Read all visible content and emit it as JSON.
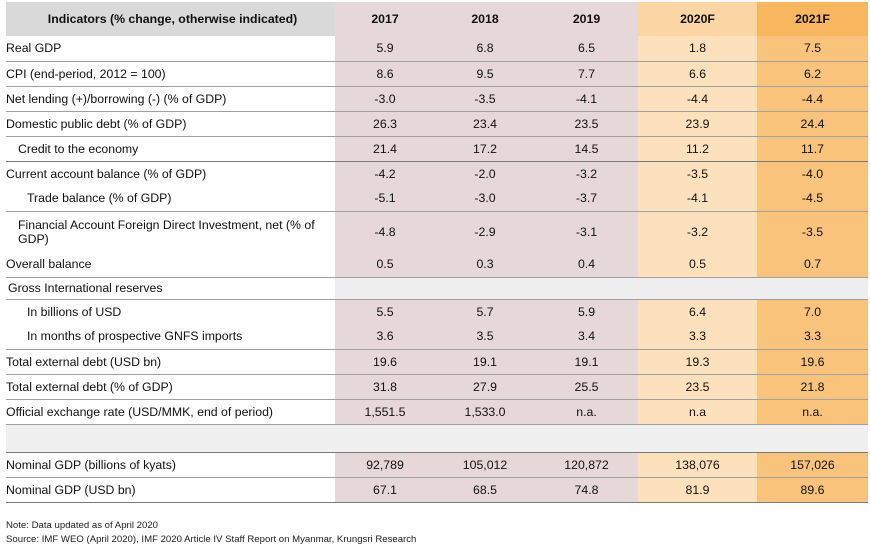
{
  "table": {
    "header": {
      "indicator": "Indicators (% change, otherwise indicated)",
      "years": [
        "2017",
        "2018",
        "2019",
        "2020F",
        "2021F"
      ]
    },
    "rows": [
      {
        "label": "Real GDP",
        "values": [
          "5.9",
          "6.8",
          "6.5",
          "1.8",
          "7.5"
        ]
      },
      {
        "label": "CPI (end-period, 2012 = 100)",
        "values": [
          "8.6",
          "9.5",
          "7.7",
          "6.6",
          "6.2"
        ]
      },
      {
        "label": "Net lending (+)/borrowing (-) (% of GDP)",
        "values": [
          "-3.0",
          "-3.5",
          "-4.1",
          "-4.4",
          "-4.4"
        ]
      },
      {
        "label": "Domestic public debt (% of GDP)",
        "values": [
          "26.3",
          "23.4",
          "23.5",
          "23.9",
          "24.4"
        ]
      },
      {
        "label": "Credit to the economy",
        "values": [
          "21.4",
          "17.2",
          "14.5",
          "11.2",
          "11.7"
        ]
      },
      {
        "label": "Current account balance (% of GDP)",
        "values": [
          "-4.2",
          "-2.0",
          "-3.2",
          "-3.5",
          "-4.0"
        ]
      },
      {
        "label": "Trade balance (% of GDP)",
        "values": [
          "-5.1",
          "-3.0",
          "-3.7",
          "-4.1",
          "-4.5"
        ]
      },
      {
        "label": "Financial Account Foreign Direct Investment, net (% of GDP)",
        "values": [
          "-4.8",
          "-2.9",
          "-3.1",
          "-3.2",
          "-3.5"
        ]
      },
      {
        "label": "Overall balance",
        "values": [
          "0.5",
          "0.3",
          "0.4",
          "0.5",
          "0.7"
        ]
      },
      {
        "label": "Gross International reserves",
        "values": [
          "",
          "",
          "",
          "",
          ""
        ]
      },
      {
        "label": "In billions of USD",
        "values": [
          "5.5",
          "5.7",
          "5.9",
          "6.4",
          "7.0"
        ]
      },
      {
        "label": "In months of prospective GNFS imports",
        "values": [
          "3.6",
          "3.5",
          "3.4",
          "3.3",
          "3.3"
        ]
      },
      {
        "label": "Total external debt (USD bn)",
        "values": [
          "19.6",
          "19.1",
          "19.1",
          "19.3",
          "19.6"
        ]
      },
      {
        "label": "Total external debt (% of GDP)",
        "values": [
          "31.8",
          "27.9",
          "25.5",
          "23.5",
          "21.8"
        ]
      },
      {
        "label": "Official exchange rate (USD/MMK, end of period)",
        "values": [
          "1,551.5",
          "1,533.0",
          "n.a.",
          "n.a",
          "n.a."
        ]
      },
      {
        "label": "",
        "values": [
          "",
          "",
          "",
          "",
          ""
        ]
      },
      {
        "label": "Nominal GDP (billions of kyats)",
        "values": [
          "92,789",
          "105,012",
          "120,872",
          "138,076",
          "157,026"
        ]
      },
      {
        "label": "Nominal GDP (USD bn)",
        "values": [
          "67.1",
          "68.5",
          "74.8",
          "81.9",
          "89.6"
        ]
      }
    ]
  },
  "notes": {
    "line1": "Note: Data updated as of April 2020",
    "line2": "Source: IMF WEO (April 2020),  IMF 2020 Article IV Staff Report on Myanmar, Krungsri Research"
  }
}
